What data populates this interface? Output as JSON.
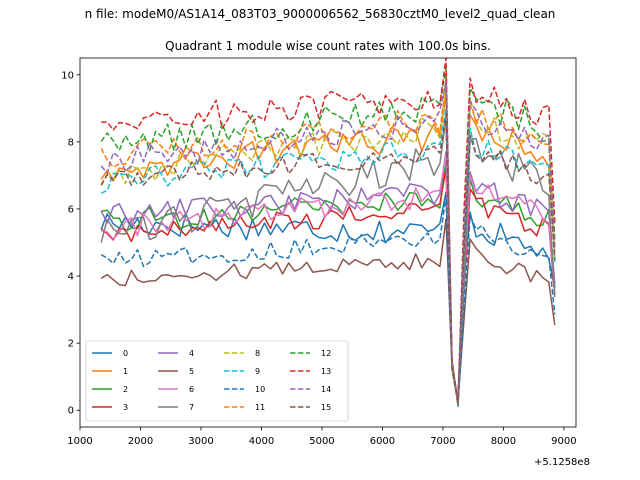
{
  "chart_data": {
    "type": "line",
    "suptitle": "n file: modeM0/AS1A14_083T03_9000006562_56830cztM0_level2_quad_clean",
    "title": "Quadrant 1 module wise count rates with 100.0s bins.",
    "xlabel": "",
    "ylabel": "",
    "x_offset_label": "+5.1258e8",
    "xlim": [
      1000,
      9200
    ],
    "ylim": [
      -0.5,
      10.5
    ],
    "x_ticks": [
      1000,
      2000,
      3000,
      4000,
      5000,
      6000,
      7000,
      8000,
      9000
    ],
    "y_ticks": [
      0,
      2,
      4,
      6,
      8,
      10
    ],
    "x_tick_labels": [
      "1000",
      "2000",
      "3000",
      "4000",
      "5000",
      "6000",
      "7000",
      "8000",
      "9000"
    ],
    "y_tick_labels": [
      "0",
      "2",
      "4",
      "6",
      "8",
      "10"
    ],
    "legend_position": "lower-left",
    "legend_columns": 4,
    "x_start": 1350,
    "x_step": 100,
    "x_end": 8850,
    "series": [
      {
        "name": "0",
        "color": "#1f77b4",
        "dash": "solid",
        "base": 5.6,
        "end": 5.3,
        "rise": 0.8
      },
      {
        "name": "1",
        "color": "#ff7f0e",
        "dash": "solid",
        "base": 7.2,
        "end": 8.2,
        "rise": 0.8
      },
      {
        "name": "2",
        "color": "#2ca02c",
        "dash": "solid",
        "base": 5.6,
        "end": 6.3,
        "rise": 0.7
      },
      {
        "name": "3",
        "color": "#d62728",
        "dash": "solid",
        "base": 5.2,
        "end": 6.0,
        "rise": 0.6
      },
      {
        "name": "4",
        "color": "#9467bd",
        "dash": "solid",
        "base": 5.8,
        "end": 6.5,
        "rise": 0.7
      },
      {
        "name": "5",
        "color": "#8c564b",
        "dash": "solid",
        "base": 3.9,
        "end": 4.5,
        "rise": 0.5
      },
      {
        "name": "6",
        "color": "#e377c2",
        "dash": "solid",
        "base": 5.4,
        "end": 6.4,
        "rise": 0.7
      },
      {
        "name": "7",
        "color": "#7f7f7f",
        "dash": "solid",
        "base": 5.2,
        "end": 7.5,
        "rise": 1.0
      },
      {
        "name": "8",
        "color": "#bcbd22",
        "dash": "dashed",
        "base": 7.0,
        "end": 8.5,
        "rise": 0.8
      },
      {
        "name": "9",
        "color": "#17becf",
        "dash": "dashed",
        "base": 6.8,
        "end": 7.8,
        "rise": 0.7
      },
      {
        "name": "10",
        "color": "#1f77b4",
        "dash": "dashed",
        "base": 4.4,
        "end": 5.2,
        "rise": 0.6
      },
      {
        "name": "11",
        "color": "#ff7f0e",
        "dash": "dashed",
        "base": 7.6,
        "end": 8.7,
        "rise": 0.8
      },
      {
        "name": "12",
        "color": "#2ca02c",
        "dash": "dashed",
        "base": 7.9,
        "end": 9.0,
        "rise": 0.9
      },
      {
        "name": "13",
        "color": "#d62728",
        "dash": "dashed",
        "base": 8.6,
        "end": 9.3,
        "rise": 0.9
      },
      {
        "name": "14",
        "color": "#9467bd",
        "dash": "dashed",
        "base": 7.4,
        "end": 8.6,
        "rise": 0.8
      },
      {
        "name": "15",
        "color": "#8c564b",
        "dash": "dashed",
        "base": 6.9,
        "end": 7.6,
        "rise": 0.7
      }
    ]
  }
}
